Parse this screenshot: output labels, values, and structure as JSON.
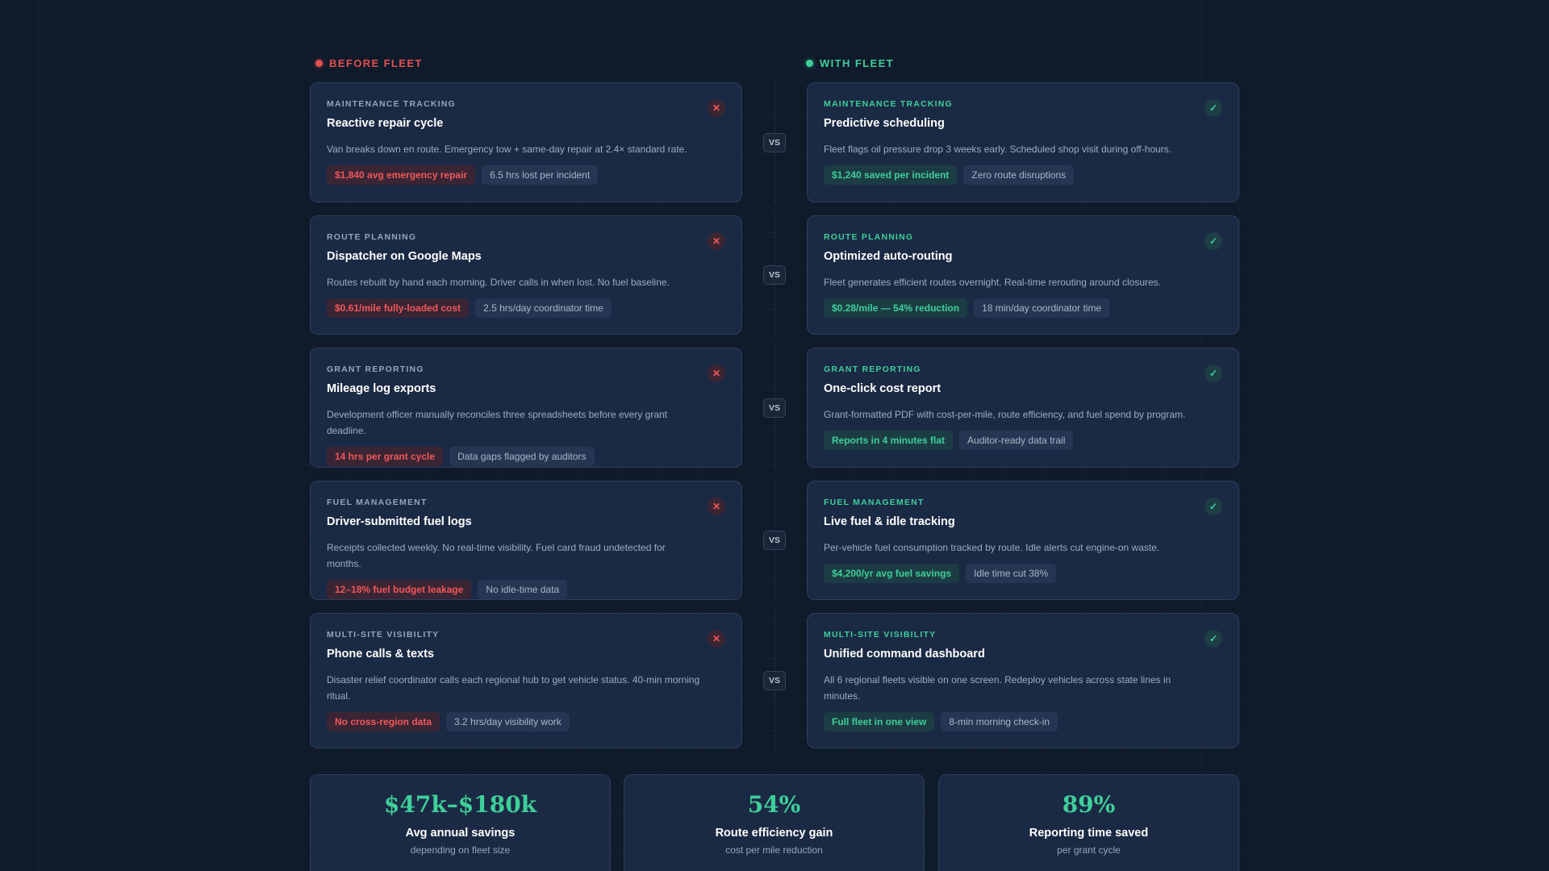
{
  "headers": {
    "before": "BEFORE FLEET",
    "with": "WITH FLEET"
  },
  "vs_label": "VS",
  "rows": [
    {
      "before": {
        "category": "MAINTENANCE TRACKING",
        "title": "Reactive repair cycle",
        "desc": "Van breaks down en route. Emergency tow + same-day repair at 2.4× standard rate.",
        "badge_primary": "$1,840 avg emergency repair",
        "badge_secondary": "6.5 hrs lost per incident"
      },
      "after": {
        "category": "MAINTENANCE TRACKING",
        "title": "Predictive scheduling",
        "desc": "Fleet flags oil pressure drop 3 weeks early. Scheduled shop visit during off-hours.",
        "badge_primary": "$1,240 saved per incident",
        "badge_secondary": "Zero route disruptions"
      }
    },
    {
      "before": {
        "category": "ROUTE PLANNING",
        "title": "Dispatcher on Google Maps",
        "desc": "Routes rebuilt by hand each morning. Driver calls in when lost. No fuel baseline.",
        "badge_primary": "$0.61/mile fully-loaded cost",
        "badge_secondary": "2.5 hrs/day coordinator time"
      },
      "after": {
        "category": "ROUTE PLANNING",
        "title": "Optimized auto-routing",
        "desc": "Fleet generates efficient routes overnight. Real-time rerouting around closures.",
        "badge_primary": "$0.28/mile — 54% reduction",
        "badge_secondary": "18 min/day coordinator time"
      }
    },
    {
      "before": {
        "category": "GRANT REPORTING",
        "title": "Mileage log exports",
        "desc": "Development officer manually reconciles three spreadsheets before every grant deadline.",
        "badge_primary": "14 hrs per grant cycle",
        "badge_secondary": "Data gaps flagged by auditors"
      },
      "after": {
        "category": "GRANT REPORTING",
        "title": "One-click cost report",
        "desc": "Grant-formatted PDF with cost-per-mile, route efficiency, and fuel spend by program.",
        "badge_primary": "Reports in 4 minutes flat",
        "badge_secondary": "Auditor-ready data trail"
      }
    },
    {
      "before": {
        "category": "FUEL MANAGEMENT",
        "title": "Driver-submitted fuel logs",
        "desc": "Receipts collected weekly. No real-time visibility. Fuel card fraud undetected for months.",
        "badge_primary": "12–18% fuel budget leakage",
        "badge_secondary": "No idle-time data"
      },
      "after": {
        "category": "FUEL MANAGEMENT",
        "title": "Live fuel & idle tracking",
        "desc": "Per-vehicle fuel consumption tracked by route. Idle alerts cut engine-on waste.",
        "badge_primary": "$4,200/yr avg fuel savings",
        "badge_secondary": "Idle time cut 38%"
      }
    },
    {
      "before": {
        "category": "MULTI-SITE VISIBILITY",
        "title": "Phone calls & texts",
        "desc": "Disaster relief coordinator calls each regional hub to get vehicle status. 40-min morning ritual.",
        "badge_primary": "No cross-region data",
        "badge_secondary": "3.2 hrs/day visibility work"
      },
      "after": {
        "category": "MULTI-SITE VISIBILITY",
        "title": "Unified command dashboard",
        "desc": "All 6 regional fleets visible on one screen. Redeploy vehicles across state lines in minutes.",
        "badge_primary": "Full fleet in one view",
        "badge_secondary": "8-min morning check-in"
      }
    }
  ],
  "stats": [
    {
      "value": "$47k–$180k",
      "label": "Avg annual savings",
      "sub": "depending on fleet size"
    },
    {
      "value": "54%",
      "label": "Route efficiency gain",
      "sub": "cost per mile reduction"
    },
    {
      "value": "89%",
      "label": "Reporting time saved",
      "sub": "per grant cycle"
    }
  ],
  "icons": {
    "negative": "x-icon",
    "positive": "check-icon"
  },
  "colors": {
    "negative": "#e2504f",
    "positive": "#3ecf9a",
    "background": "#0f1a2b",
    "card": "#1b2a44"
  }
}
